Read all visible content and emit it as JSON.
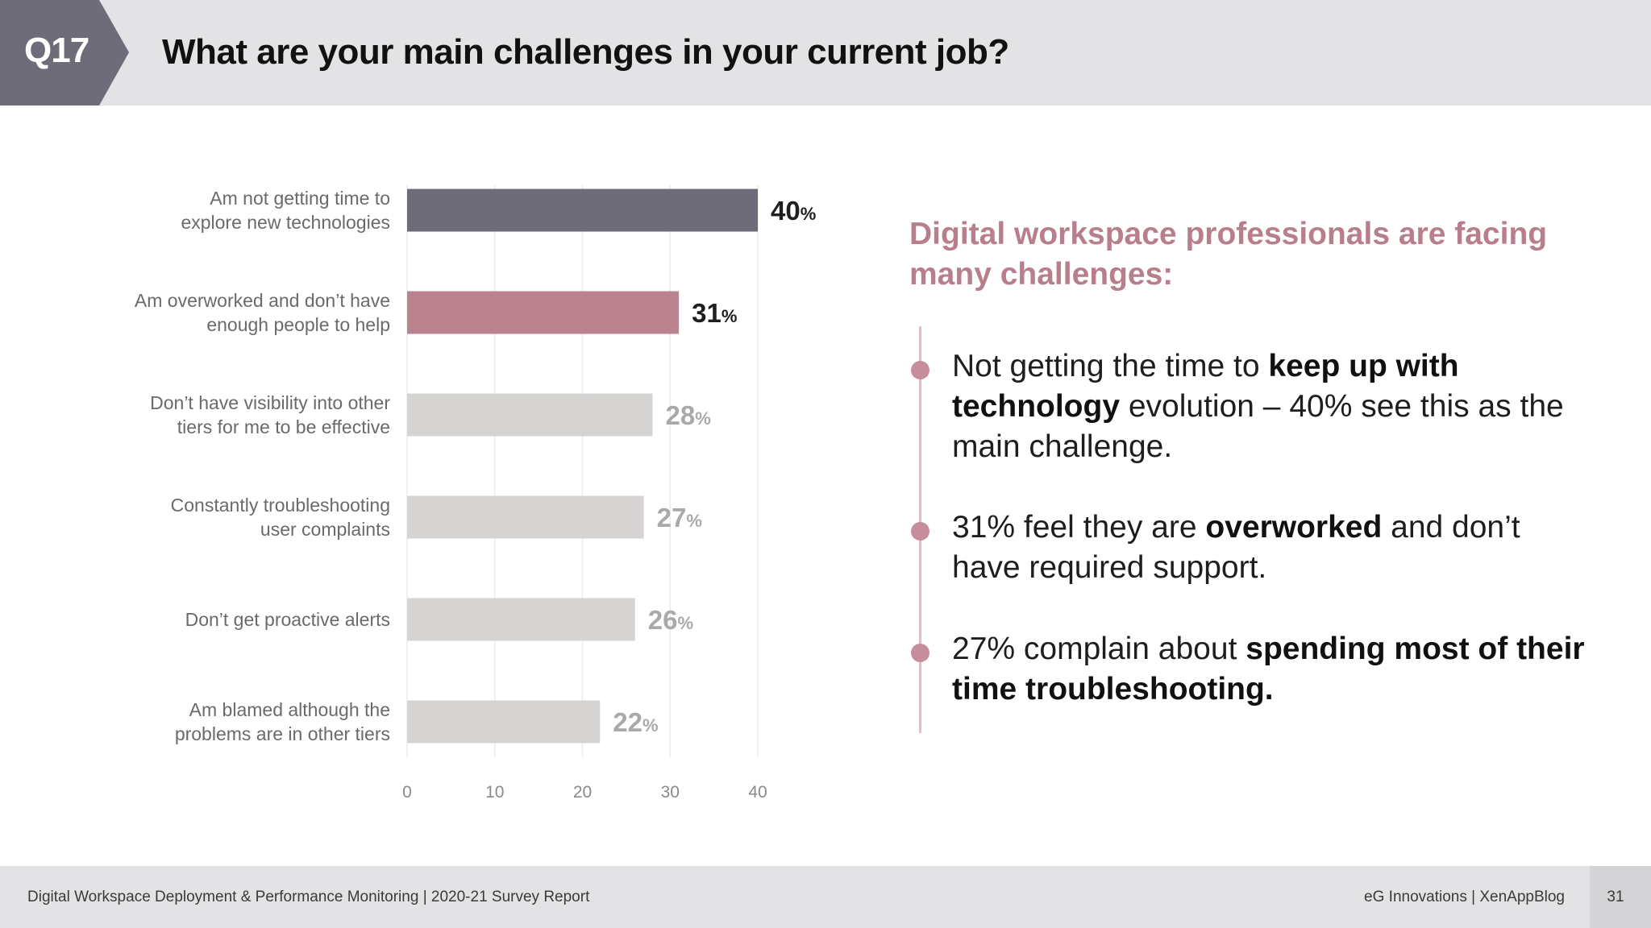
{
  "header": {
    "badge": "Q17",
    "title": "What are your main challenges in your current job?"
  },
  "chart_data": {
    "type": "bar",
    "orientation": "horizontal",
    "categories": [
      "Am not getting time to\nexplore new technologies",
      "Am overworked and don’t have\nenough people to help",
      "Don’t have visibility into other\ntiers for me to be effective",
      "Constantly troubleshooting\nuser complaints",
      "Don’t get proactive alerts",
      "Am blamed although the\nproblems are in other tiers"
    ],
    "values": [
      40,
      31,
      28,
      27,
      26,
      22
    ],
    "value_suffix": "%",
    "bar_colors": [
      "#6e6c79",
      "#bb8390",
      "#d6d4d3",
      "#d6d4d3",
      "#d6d4d3",
      "#d6d4d3"
    ],
    "label_colors": [
      "#1f1f1f",
      "#1f1f1f",
      "#a9a9a9",
      "#a9a9a9",
      "#a9a9a9",
      "#a9a9a9"
    ],
    "xticks": [
      0,
      10,
      20,
      30,
      40
    ],
    "xlim": [
      0,
      40
    ],
    "grid": "vertical"
  },
  "insights": {
    "title": "Digital workspace professionals are facing many challenges:",
    "bullets": [
      {
        "parts": [
          {
            "text": "Not getting the time to ",
            "bold": false
          },
          {
            "text": "keep up with technology",
            "bold": true
          },
          {
            "text": " evolution – 40% see this as the main challenge.",
            "bold": false
          }
        ]
      },
      {
        "parts": [
          {
            "text": "31% feel they are ",
            "bold": false
          },
          {
            "text": "overworked",
            "bold": true
          },
          {
            "text": " and don’t have required support.",
            "bold": false
          }
        ]
      },
      {
        "parts": [
          {
            "text": "27% complain about ",
            "bold": false
          },
          {
            "text": "spending most of their time troubleshooting.",
            "bold": true
          }
        ]
      }
    ],
    "dot_color": "#c68e9c"
  },
  "footer": {
    "left": "Digital Workspace Deployment & Performance Monitoring | 2020-21 Survey Report",
    "right": "eG Innovations   |   XenAppBlog",
    "page": "31"
  }
}
